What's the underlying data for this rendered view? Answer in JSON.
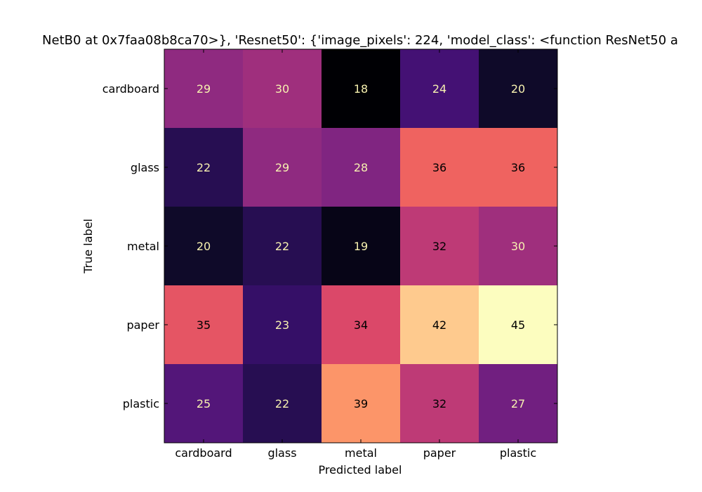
{
  "chart_data": {
    "type": "heatmap",
    "title": "NetB0 at 0x7faa08b8ca70>}, 'Resnet50': {'image_pixels': 224, 'model_class': <function ResNet50 a",
    "xlabel": "Predicted label",
    "ylabel": "True label",
    "x_categories": [
      "cardboard",
      "glass",
      "metal",
      "paper",
      "plastic"
    ],
    "y_categories": [
      "cardboard",
      "glass",
      "metal",
      "paper",
      "plastic"
    ],
    "values": [
      [
        29,
        30,
        18,
        24,
        20
      ],
      [
        22,
        29,
        28,
        36,
        36
      ],
      [
        20,
        22,
        19,
        32,
        30
      ],
      [
        35,
        23,
        34,
        42,
        45
      ],
      [
        25,
        22,
        39,
        32,
        27
      ]
    ],
    "colormap": "magma",
    "vmin": 18,
    "vmax": 45,
    "grid": false,
    "colors": {
      "dark_text": "#000000",
      "light_text": "#f7f1b0"
    }
  }
}
